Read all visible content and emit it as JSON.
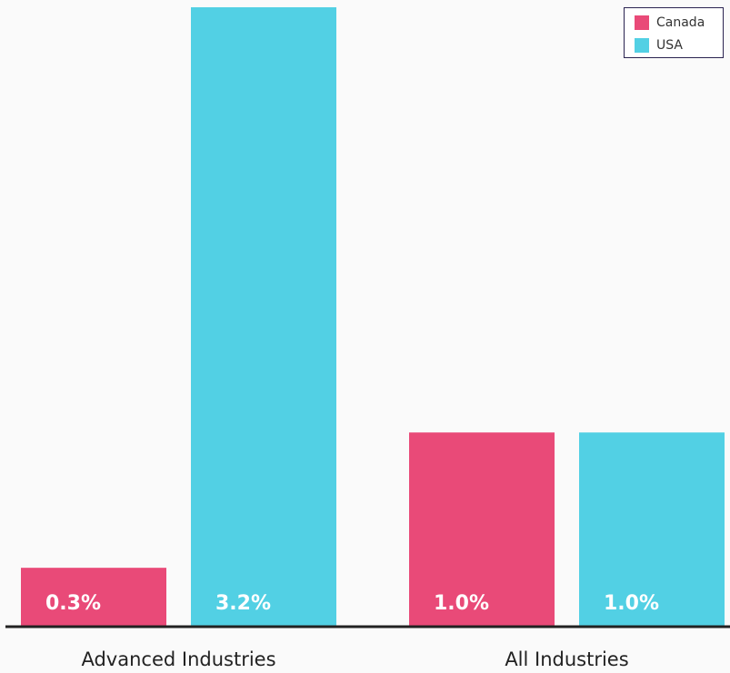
{
  "chart_data": {
    "type": "bar",
    "categories": [
      "Advanced Industries",
      "All Industries"
    ],
    "series": [
      {
        "name": "Canada",
        "values": [
          0.3,
          1.0
        ],
        "labels": [
          "0.3%",
          "1.0%"
        ],
        "color": "#e94a78"
      },
      {
        "name": "USA",
        "values": [
          3.2,
          1.0
        ],
        "labels": [
          "3.2%",
          "1.0%"
        ],
        "color": "#52d0e4"
      }
    ],
    "title": "",
    "xlabel": "",
    "ylabel": "",
    "ylim": [
      0,
      3.2
    ],
    "grid": false,
    "legend_position": "top-right",
    "colors": {
      "background": "#fafafa",
      "axis": "#222222",
      "data_label": "#ffffff",
      "category_label": "#222222"
    }
  }
}
